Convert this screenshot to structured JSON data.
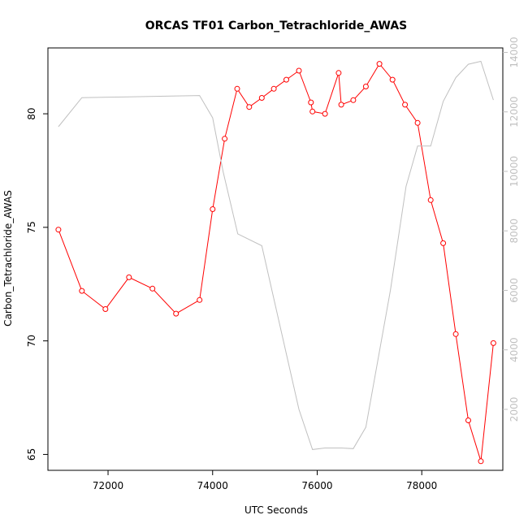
{
  "chart_data": {
    "type": "line",
    "title": "ORCAS TF01 Carbon_Tetrachloride_AWAS",
    "xlabel": "UTC Seconds",
    "ylabel": "Carbon_Tetrachloride_AWAS",
    "xlim": [
      70850,
      79550
    ],
    "ylim": [
      64.3,
      82.9
    ],
    "y2lim": [
      -50,
      14150
    ],
    "x_ticks": [
      72000,
      74000,
      76000,
      78000
    ],
    "y_ticks": [
      65,
      70,
      75,
      80
    ],
    "y2_ticks": [
      2000,
      4000,
      6000,
      8000,
      10000,
      12000,
      14000
    ],
    "colors": {
      "primary": "#ff0000",
      "secondary": "#c0c0c0",
      "frame": "#000000"
    },
    "series": [
      {
        "axis": "left",
        "color": "#ff0000",
        "marker": "open-circle",
        "x": [
          71050,
          71500,
          71950,
          72400,
          72850,
          73300,
          73750,
          74000,
          74230,
          74470,
          74700,
          74940,
          75170,
          75410,
          75650,
          75880,
          75910,
          76150,
          76410,
          76460,
          76690,
          76930,
          77190,
          77440,
          77680,
          77920,
          78170,
          78410,
          78650,
          78890,
          79130,
          79370
        ],
        "values": [
          74.9,
          72.2,
          71.4,
          72.8,
          72.3,
          71.2,
          71.8,
          75.8,
          78.9,
          81.1,
          80.3,
          80.7,
          81.1,
          81.5,
          81.9,
          80.5,
          80.1,
          80.0,
          81.8,
          80.4,
          80.6,
          81.2,
          82.2,
          81.5,
          80.4,
          79.6,
          76.2,
          74.3,
          70.3,
          66.5,
          64.7,
          69.9
        ]
      },
      {
        "axis": "right",
        "color": "#c0c0c0",
        "x": [
          71050,
          71500,
          72300,
          73200,
          73750,
          74000,
          74200,
          74480,
          74940,
          75650,
          75910,
          76150,
          76460,
          76690,
          76930,
          77400,
          77700,
          77920,
          78170,
          78410,
          78650,
          78890,
          79130,
          79370
        ],
        "values": [
          11500,
          12480,
          12500,
          12530,
          12550,
          11800,
          10000,
          7900,
          7500,
          2000,
          650,
          700,
          700,
          680,
          1400,
          6000,
          9500,
          10850,
          10850,
          12350,
          13150,
          13600,
          13700,
          12400
        ]
      }
    ]
  }
}
